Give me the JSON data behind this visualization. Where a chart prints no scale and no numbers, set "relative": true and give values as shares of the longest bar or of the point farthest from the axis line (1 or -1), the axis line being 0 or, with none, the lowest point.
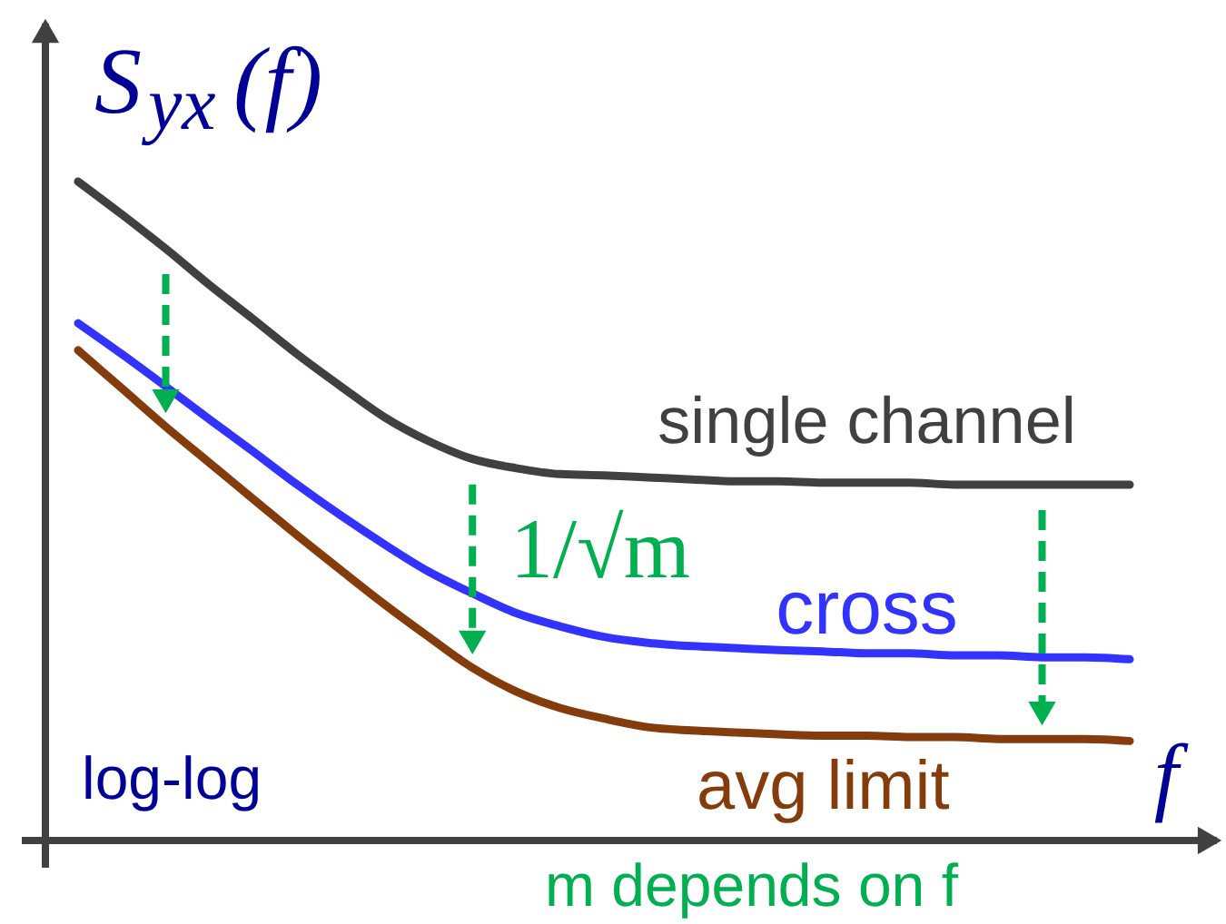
{
  "chart_data": {
    "type": "line",
    "relative": true,
    "categories": [
      null,
      null,
      null,
      null,
      null,
      null,
      null,
      null,
      null,
      null,
      null,
      null,
      null,
      null,
      null,
      null,
      null,
      null,
      null,
      null,
      null,
      null,
      null,
      null,
      null
    ],
    "ylabel": "S$_{yx}$(f)",
    "xlabel": "f",
    "series": [
      {
        "name": "single channel",
        "color": "#404040",
        "values": [
          1.0,
          0.95,
          0.898,
          0.843,
          0.791,
          0.738,
          0.689,
          0.642,
          0.606,
          0.579,
          0.565,
          0.556,
          0.554,
          0.551,
          0.548,
          0.545,
          0.545,
          0.543,
          0.543,
          0.543,
          0.54,
          0.54,
          0.54,
          0.54,
          0.54
        ]
      },
      {
        "name": "cross",
        "color": "#3333ff",
        "values": [
          0.785,
          0.738,
          0.689,
          0.639,
          0.59,
          0.54,
          0.493,
          0.449,
          0.408,
          0.375,
          0.345,
          0.325,
          0.309,
          0.3,
          0.295,
          0.292,
          0.289,
          0.287,
          0.284,
          0.284,
          0.281,
          0.281,
          0.278,
          0.278,
          0.275
        ]
      },
      {
        "name": "avg limit",
        "color": "#843c0c",
        "values": [
          0.744,
          0.686,
          0.628,
          0.573,
          0.518,
          0.463,
          0.41,
          0.358,
          0.309,
          0.262,
          0.226,
          0.201,
          0.185,
          0.172,
          0.167,
          0.164,
          0.161,
          0.159,
          0.159,
          0.157,
          0.157,
          0.154,
          0.154,
          0.154,
          0.151
        ]
      }
    ],
    "annotations": [
      "1/√m",
      "log-log",
      "m depends on f"
    ]
  }
}
